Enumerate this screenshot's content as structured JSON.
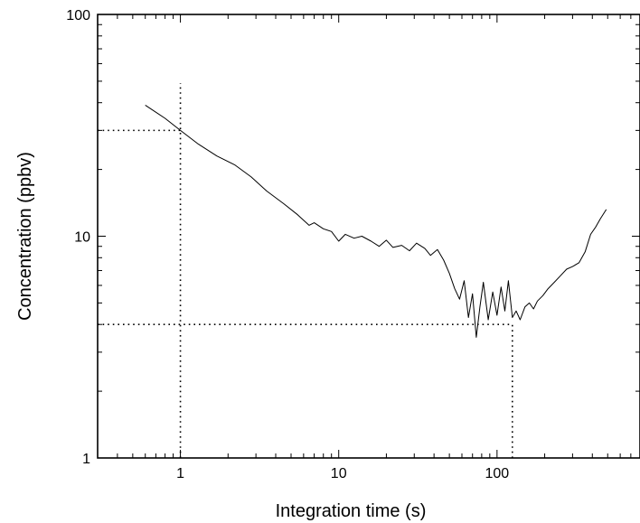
{
  "chart_data": {
    "type": "line",
    "xlabel": "Integration time (s)",
    "ylabel": "Concentration (ppbv)",
    "x_scale": "log",
    "y_scale": "log",
    "xlim": [
      0.3,
      800
    ],
    "ylim": [
      1,
      100
    ],
    "x_ticks": [
      {
        "value": 1,
        "label": "1"
      },
      {
        "value": 10,
        "label": "10"
      },
      {
        "value": 100,
        "label": "100"
      }
    ],
    "y_ticks": [
      {
        "value": 1,
        "label": "1"
      },
      {
        "value": 10,
        "label": "10"
      },
      {
        "value": 100,
        "label": "100"
      }
    ],
    "grid": false,
    "reference_lines": [
      {
        "kind": "vertical",
        "x": 1,
        "y_from": 1,
        "y_to": 49
      },
      {
        "kind": "horizontal",
        "y": 30,
        "x_from": 0.3,
        "x_to": 1
      },
      {
        "kind": "horizontal",
        "y": 4,
        "x_from": 0.3,
        "x_to": 125
      },
      {
        "kind": "vertical",
        "x": 125,
        "y_from": 1,
        "y_to": 4
      }
    ],
    "series": [
      {
        "x": [
          0.6,
          0.8,
          1.0,
          1.3,
          1.7,
          2.2,
          2.8,
          3.5,
          4.5,
          5.5,
          6.5,
          7.0,
          8.0,
          9.0,
          10.0,
          11.0,
          12.5,
          14.0,
          16.0,
          18.0,
          20.0,
          22.0,
          25.0,
          28.0,
          31.0,
          35.0,
          38.0,
          42.0,
          46.0,
          50.0,
          54.0,
          58.0,
          62.0,
          66.0,
          70.0,
          74.0,
          78.0,
          82.0,
          88.0,
          94.0,
          100.0,
          106.0,
          112.0,
          118.0,
          125.0,
          132.0,
          140.0,
          150.0,
          160.0,
          170.0,
          180.0,
          195.0,
          210.0,
          230.0,
          250.0,
          275.0,
          300.0,
          330.0,
          360.0,
          390.0,
          420.0,
          450.0,
          490.0
        ],
        "y": [
          39,
          34,
          30,
          26,
          23,
          21,
          18.5,
          16,
          14,
          12.5,
          11.2,
          11.5,
          10.8,
          10.5,
          9.5,
          10.2,
          9.8,
          10.0,
          9.5,
          9.0,
          9.6,
          8.9,
          9.1,
          8.6,
          9.3,
          8.8,
          8.2,
          8.7,
          7.8,
          6.8,
          5.8,
          5.2,
          6.3,
          4.3,
          5.5,
          3.5,
          4.8,
          6.2,
          4.2,
          5.6,
          4.4,
          5.9,
          4.6,
          6.3,
          4.3,
          4.6,
          4.2,
          4.8,
          5.0,
          4.7,
          5.1,
          5.4,
          5.8,
          6.2,
          6.6,
          7.1,
          7.3,
          7.6,
          8.5,
          10.2,
          11.0,
          12.0,
          13.2
        ]
      }
    ]
  }
}
